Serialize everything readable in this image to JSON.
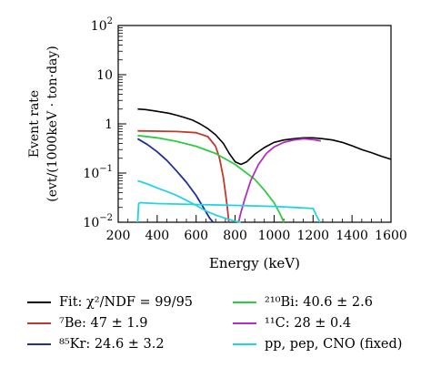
{
  "chart_data": {
    "type": "line",
    "xlabel": "Energy (keV)",
    "ylabel_line1": "Event rate",
    "ylabel_line2": "(evt/(1000keV · ton·day)",
    "xlim": [
      200,
      1600
    ],
    "ylim": [
      0.01,
      100
    ],
    "y_scale": "log",
    "x_ticks": [
      200,
      400,
      600,
      800,
      1000,
      1200,
      1400,
      1600
    ],
    "y_ticks": [
      {
        "value": 0.01,
        "base": "10",
        "exp": "−2"
      },
      {
        "value": 0.1,
        "base": "10",
        "exp": "−1"
      },
      {
        "value": 1,
        "base": "1",
        "exp": ""
      },
      {
        "value": 10,
        "base": "10",
        "exp": ""
      },
      {
        "value": 100,
        "base": "10",
        "exp": "2"
      }
    ],
    "grid": false,
    "legend_position": "bottom",
    "series": [
      {
        "key": "fit",
        "name": "Fit: χ²/NDF = 99/95",
        "color": "#000000",
        "x": [
          300,
          340,
          380,
          420,
          460,
          500,
          540,
          580,
          620,
          660,
          700,
          740,
          770,
          800,
          830,
          860,
          900,
          950,
          1000,
          1050,
          1100,
          1150,
          1200,
          1250,
          1300,
          1350,
          1400,
          1450,
          1500,
          1550,
          1600
        ],
        "y": [
          2.0,
          1.95,
          1.85,
          1.75,
          1.65,
          1.5,
          1.35,
          1.2,
          1.0,
          0.8,
          0.6,
          0.4,
          0.25,
          0.17,
          0.15,
          0.17,
          0.24,
          0.33,
          0.42,
          0.47,
          0.5,
          0.52,
          0.52,
          0.5,
          0.47,
          0.42,
          0.36,
          0.3,
          0.26,
          0.22,
          0.19
        ]
      },
      {
        "key": "be7",
        "name": "⁷Be: 47 ± 1.9",
        "color": "#c0392b",
        "x": [
          300,
          400,
          500,
          600,
          660,
          700,
          720,
          740,
          750,
          760,
          768
        ],
        "y": [
          0.72,
          0.71,
          0.7,
          0.66,
          0.55,
          0.35,
          0.2,
          0.08,
          0.04,
          0.02,
          0.01
        ]
      },
      {
        "key": "kr85",
        "name": "⁸⁵Kr: 24.6 ± 3.2",
        "color": "#1f2f9a",
        "x": [
          300,
          350,
          400,
          450,
          500,
          550,
          600,
          640,
          670,
          687
        ],
        "y": [
          0.5,
          0.38,
          0.27,
          0.18,
          0.11,
          0.065,
          0.035,
          0.019,
          0.012,
          0.01
        ]
      },
      {
        "key": "bi210",
        "name": "²¹⁰Bi: 40.6 ± 2.6",
        "color": "#2ecc40",
        "x": [
          300,
          400,
          500,
          600,
          700,
          800,
          900,
          950,
          1000,
          1030,
          1050
        ],
        "y": [
          0.58,
          0.52,
          0.44,
          0.35,
          0.25,
          0.15,
          0.075,
          0.045,
          0.025,
          0.015,
          0.01
        ]
      },
      {
        "key": "c11",
        "name": "¹¹C: 28 ± 0.4",
        "color": "#b02fc0",
        "x": [
          818,
          830,
          850,
          880,
          920,
          960,
          1000,
          1050,
          1100,
          1150,
          1200,
          1240
        ],
        "y": [
          0.01,
          0.016,
          0.03,
          0.07,
          0.15,
          0.25,
          0.34,
          0.42,
          0.47,
          0.5,
          0.48,
          0.45
        ]
      },
      {
        "key": "pp",
        "name": "pp, pep, CNO (fixed)",
        "color": "#22d3e6",
        "x": [
          300,
          350,
          400,
          450,
          500,
          550,
          600,
          650,
          700,
          750,
          800,
          830
        ],
        "y": [
          0.07,
          0.06,
          0.05,
          0.042,
          0.035,
          0.028,
          0.022,
          0.017,
          0.014,
          0.012,
          0.0105,
          0.01
        ]
      },
      {
        "key": "pp2",
        "name": "",
        "color": "#22d3e6",
        "x": [
          300,
          305,
          310,
          400,
          600,
          800,
          1000,
          1100,
          1200,
          1220,
          1235
        ],
        "y": [
          0.01,
          0.024,
          0.025,
          0.024,
          0.023,
          0.022,
          0.021,
          0.02,
          0.019,
          0.013,
          0.01
        ]
      }
    ]
  },
  "legend": {
    "fit": "Fit: χ²/NDF = 99/95",
    "be7": "⁷Be: 47 ± 1.9",
    "kr85": "⁸⁵Kr: 24.6 ± 3.2",
    "bi210": "²¹⁰Bi: 40.6 ± 2.6",
    "c11": "¹¹C: 28 ± 0.4",
    "pp": "pp, pep, CNO (fixed)"
  }
}
